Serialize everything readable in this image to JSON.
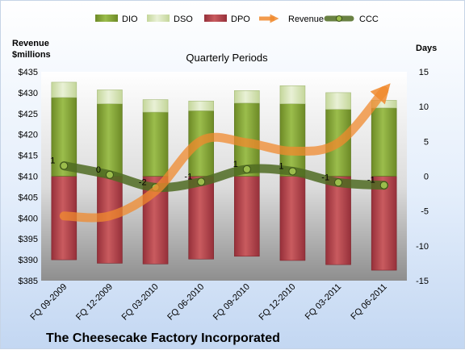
{
  "chart_data": {
    "type": "bar",
    "title": "Quarterly Periods",
    "caption": "The Cheesecake Factory Incorporated",
    "categories": [
      "FQ 09-2009",
      "FQ 12-2009",
      "FQ 03-2010",
      "FQ 06-2010",
      "FQ 09-2010",
      "FQ 12-2010",
      "FQ 03-2011",
      "FQ 06-2011"
    ],
    "y_left": {
      "label_line1": "Revenue",
      "label_line2": "$millions",
      "ylim": [
        385,
        435
      ],
      "ticks": [
        "$385",
        "$390",
        "$395",
        "$400",
        "$405",
        "$410",
        "$415",
        "$420",
        "$425",
        "$430",
        "$435"
      ]
    },
    "y_right": {
      "label": "Days",
      "ylim": [
        -15,
        15
      ],
      "ticks": [
        "-15",
        "-10",
        "-5",
        "0",
        "5",
        "10",
        "15"
      ]
    },
    "series": [
      {
        "name": "DIO",
        "type": "bar",
        "axis": "right",
        "values": [
          11.3,
          10.4,
          9.2,
          9.4,
          10.5,
          10.4,
          9.6,
          9.8
        ],
        "color": "#7a9a2e"
      },
      {
        "name": "DSO",
        "type": "bar",
        "axis": "right",
        "values": [
          2.2,
          2.0,
          1.8,
          1.4,
          1.8,
          2.6,
          2.4,
          1.1
        ],
        "color": "#d4e3b2"
      },
      {
        "name": "DPO",
        "type": "bar",
        "axis": "right",
        "values": [
          -12.0,
          -12.5,
          -12.6,
          -11.9,
          -11.5,
          -12.1,
          -12.7,
          -13.5
        ],
        "color": "#a8353a"
      },
      {
        "name": "Revenue",
        "type": "line",
        "axis": "left",
        "values": [
          400.5,
          400.5,
          406.5,
          418.5,
          418.0,
          416.0,
          418.0,
          430.5
        ],
        "color": "#f08a2e"
      },
      {
        "name": "CCC",
        "type": "line",
        "axis": "right",
        "values": [
          1.5,
          0.2,
          -1.6,
          -0.8,
          1.0,
          0.7,
          -0.9,
          -1.3
        ],
        "labels": [
          "1",
          "0",
          "-2",
          "-1",
          "1",
          "1",
          "-1",
          "-1"
        ],
        "color": "#4f6b22"
      }
    ],
    "legend_position": "top",
    "grid": false
  }
}
